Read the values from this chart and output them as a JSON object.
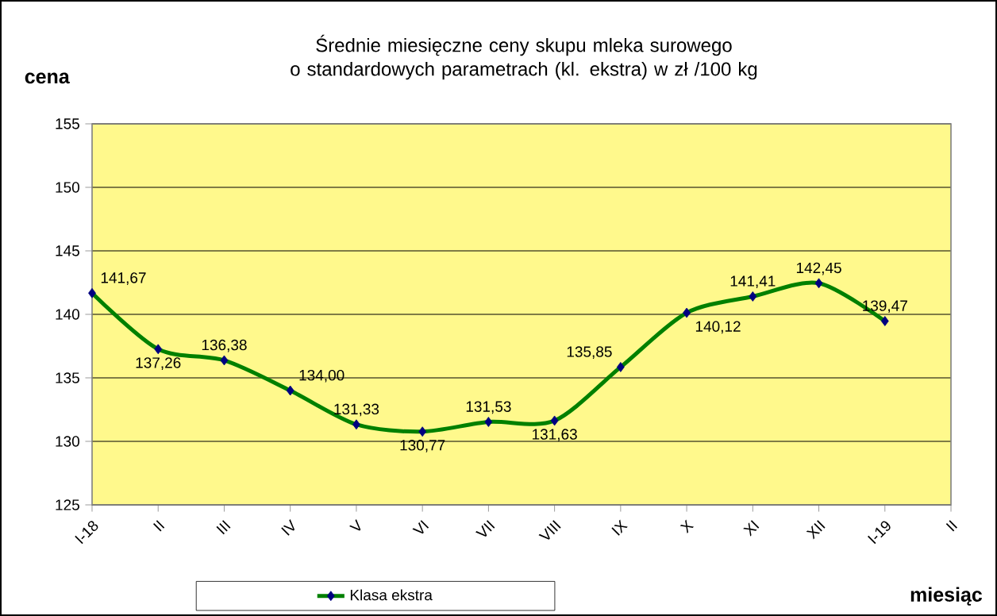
{
  "chart_data": {
    "type": "line",
    "title": "Średnie miesięczne ceny skupu mleka surowego\no standardowych parametrach (kl. ekstra) w zł /100 kg",
    "xlabel": "miesiąc",
    "ylabel": "cena",
    "categories": [
      "I-18",
      "II",
      "III",
      "IV",
      "V",
      "VI",
      "VII",
      "VIII",
      "IX",
      "X",
      "XI",
      "XII",
      "I-19",
      "II"
    ],
    "series": [
      {
        "name": "Klasa ekstra",
        "color": "#008000",
        "values": [
          141.67,
          137.26,
          136.38,
          134.0,
          131.33,
          130.77,
          131.53,
          131.63,
          135.85,
          140.12,
          141.41,
          142.45,
          139.47,
          null
        ],
        "value_labels": [
          "141,67",
          "137,26",
          "136,38",
          "134,00",
          "131,33",
          "130,77",
          "131,53",
          "131,63",
          "135,85",
          "140,12",
          "141,41",
          "142,45",
          "139,47",
          null
        ]
      }
    ],
    "ylim": [
      125,
      155
    ],
    "yticks": [
      125,
      130,
      135,
      140,
      145,
      150,
      155
    ],
    "grid": "y",
    "legend": "bottom",
    "marker": "diamond",
    "line_style": "solid"
  }
}
